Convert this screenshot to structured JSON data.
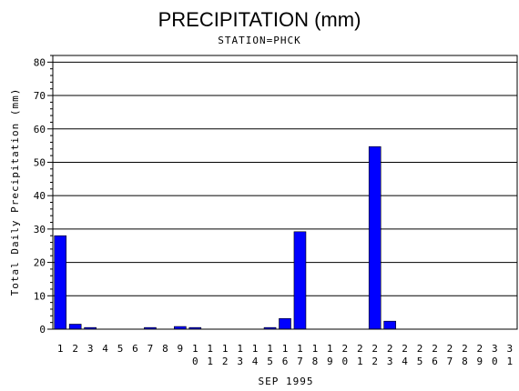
{
  "chart_data": {
    "type": "bar",
    "title": "PRECIPITATION (mm)",
    "subtitle": "STATION=PHCK",
    "xlabel": "SEP 1995",
    "ylabel": "Total Daily Precipitation (mm)",
    "ylim": [
      0,
      82
    ],
    "yticks": [
      0,
      10,
      20,
      30,
      40,
      50,
      60,
      70,
      80
    ],
    "grid": true,
    "bar_color": "#0000ff",
    "categories": [
      "1",
      "2",
      "3",
      "4",
      "5",
      "6",
      "7",
      "8",
      "9",
      "10",
      "11",
      "12",
      "13",
      "14",
      "15",
      "16",
      "17",
      "18",
      "19",
      "20",
      "21",
      "22",
      "23",
      "24",
      "25",
      "26",
      "27",
      "28",
      "29",
      "30",
      "31"
    ],
    "values": [
      28,
      1.5,
      0.5,
      0,
      0,
      0,
      0.5,
      0,
      0.8,
      0.5,
      0,
      0,
      0,
      0,
      0.5,
      3.2,
      29.2,
      0,
      0,
      0,
      0,
      54.7,
      2.4,
      0,
      0,
      0,
      0,
      0,
      0,
      0,
      0
    ]
  }
}
